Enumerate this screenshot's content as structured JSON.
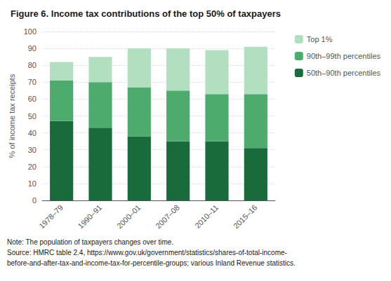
{
  "chart_data": {
    "type": "bar",
    "title": "Figure 6. Income tax contributions of the top 50% of taxpayers",
    "ylabel": "% of income tax receipts",
    "categories": [
      "1978–79",
      "1990–91",
      "2000–01",
      "2007–08",
      "2010–11",
      "2015–16"
    ],
    "series": [
      {
        "name": "50th–90th percentiles",
        "color": "#1a6b3c",
        "values": [
          47,
          43,
          38,
          35,
          35,
          31
        ]
      },
      {
        "name": "90th–99th percentiles",
        "color": "#4dab6d",
        "values": [
          24,
          27,
          29,
          30,
          28,
          32
        ]
      },
      {
        "name": "Top 1%",
        "color": "#b2dfc0",
        "values": [
          11,
          15,
          23,
          25,
          26,
          28
        ]
      }
    ],
    "stacked": true,
    "ylim": [
      0,
      100
    ],
    "yticks": [
      0,
      10,
      20,
      30,
      40,
      50,
      60,
      70,
      80,
      90,
      100
    ],
    "grid": true,
    "legend": "right",
    "annotations": [
      "Note: The population of taxpayers changes over time.",
      "Source: HMRC table 2.4, https://www.gov.uk/government/statistics/shares-of-total-income-",
      "before-and-after-tax-and-income-tax-for-percentile-groups; various Inland Revenue statistics."
    ]
  }
}
